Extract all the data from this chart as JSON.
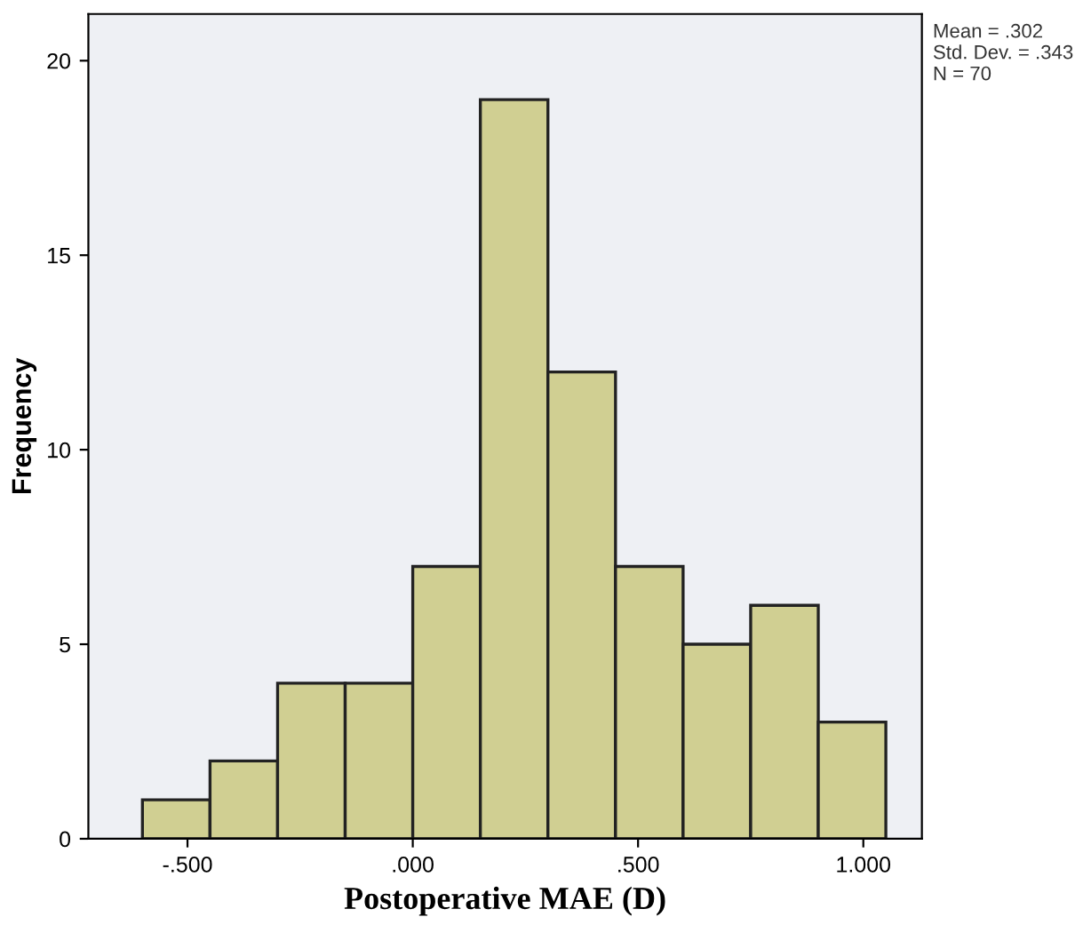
{
  "chart_data": {
    "type": "histogram",
    "xlabel": "Postoperative MAE (D)",
    "ylabel": "Frequency",
    "bins": [
      -0.6,
      -0.45,
      -0.3,
      -0.15,
      0.0,
      0.15,
      0.3,
      0.45,
      0.6,
      0.75,
      0.9,
      1.05
    ],
    "values": [
      1,
      2,
      4,
      4,
      7,
      19,
      12,
      7,
      5,
      6,
      3
    ],
    "color": "#d0cf92",
    "xlim": [
      -0.72,
      1.13
    ],
    "ylim": [
      0,
      21.2
    ],
    "xticks": [
      {
        "value": -0.5,
        "label": "-.500"
      },
      {
        "value": 0,
        "label": ".000"
      },
      {
        "value": 0.5,
        "label": ".500"
      },
      {
        "value": 1.0,
        "label": "1.000"
      }
    ],
    "yticks": [
      0,
      5,
      10,
      15,
      20
    ],
    "grid": false,
    "annotations": [
      "Mean = .302\nStd. Dev. = .343\nN = 70"
    ]
  }
}
